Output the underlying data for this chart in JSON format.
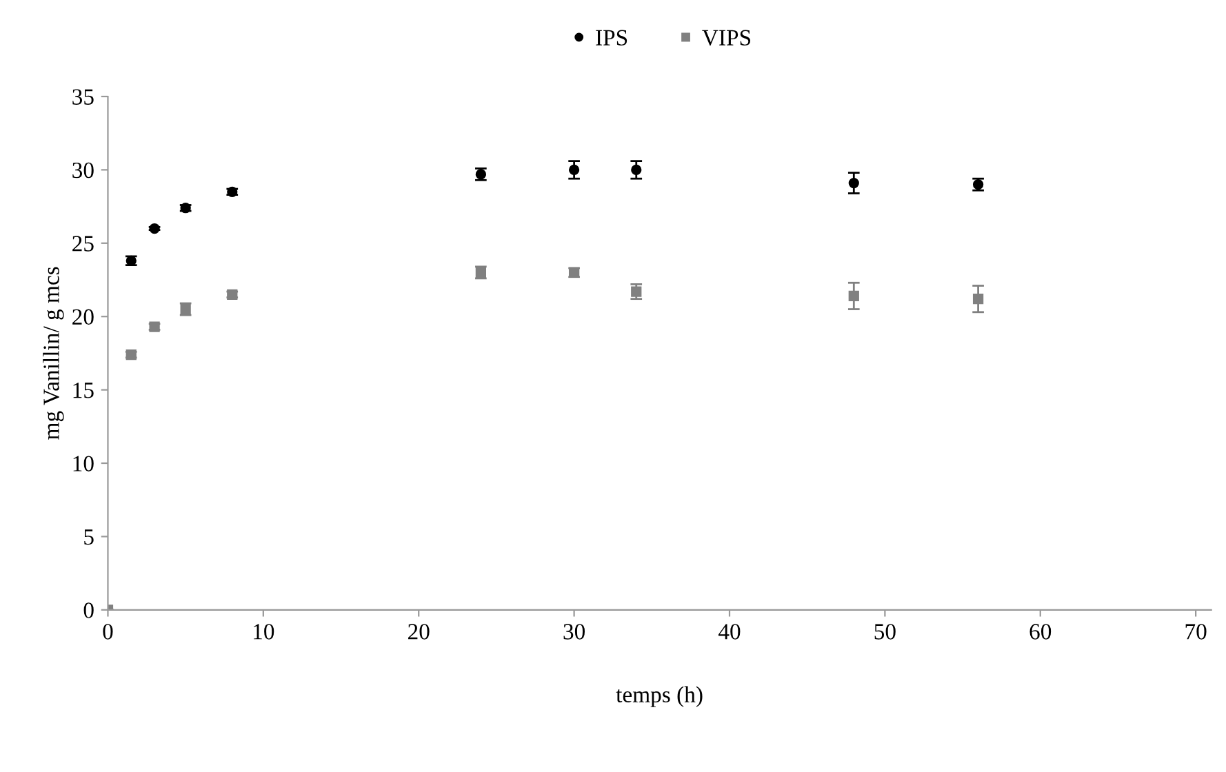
{
  "chart_data": {
    "type": "scatter",
    "xlabel": "temps (h)",
    "ylabel": "mg Vanillin/ g mcs",
    "xlim": [
      0,
      71
    ],
    "ylim": [
      0,
      35
    ],
    "xticks": [
      0,
      10,
      20,
      30,
      40,
      50,
      60,
      70
    ],
    "yticks": [
      0,
      5,
      10,
      15,
      20,
      25,
      30,
      35
    ],
    "grid": false,
    "legend": "top",
    "series": [
      {
        "name": "IPS",
        "color": "#000000",
        "marker": "circle",
        "x": [
          1.5,
          3,
          5,
          8,
          24,
          30,
          34,
          48,
          56
        ],
        "values": [
          23.8,
          26,
          27.4,
          28.5,
          29.7,
          30,
          30,
          29.1,
          29
        ],
        "errors": [
          0.3,
          0.1,
          0.2,
          0.2,
          0.4,
          0.6,
          0.6,
          0.7,
          0.4
        ]
      },
      {
        "name": "VIPS",
        "color": "#808080",
        "marker": "square",
        "x": [
          0,
          1.5,
          3,
          5,
          8,
          24,
          30,
          34,
          48,
          56
        ],
        "values": [
          0,
          17.4,
          19.3,
          20.5,
          21.5,
          23,
          23,
          21.7,
          21.4,
          21.2
        ],
        "errors": [
          null,
          0.2,
          0.2,
          0.4,
          0.2,
          0.4,
          0.3,
          0.5,
          0.9,
          0.9
        ]
      }
    ]
  }
}
